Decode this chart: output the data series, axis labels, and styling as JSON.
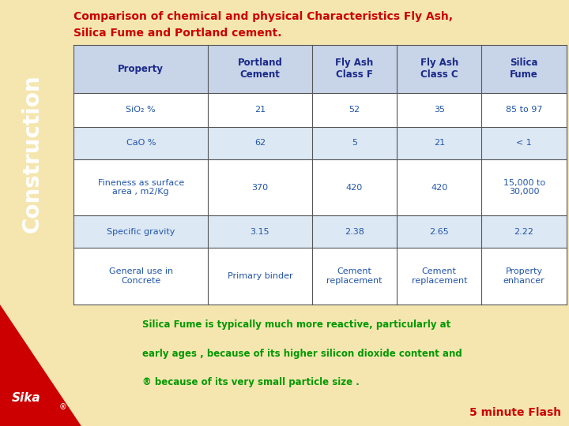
{
  "title_line1": "Comparison of chemical and physical Characteristics Fly Ash,",
  "title_line2": "Silica Fume and Portland cement.",
  "title_color": "#cc0000",
  "sidebar_color": "#f5a800",
  "sidebar_text": "Construction",
  "sidebar_text_color": "#ffffff",
  "bg_color": "#f5e6b0",
  "bottom_bg_color": "#f0dfa0",
  "table_header_bg": "#c8d4e8",
  "table_header_text_color": "#1a2a8a",
  "table_border_color": "#555555",
  "cell_text_color": "#2255aa",
  "col_headers": [
    "Property",
    "Portland\nCement",
    "Fly Ash\nClass F",
    "Fly Ash\nClass C",
    "Silica\nFume"
  ],
  "rows": [
    [
      "SiO₂ %",
      "21",
      "52",
      "35",
      "85 to 97"
    ],
    [
      "CaO %",
      "62",
      "5",
      "21",
      "< 1"
    ],
    [
      "Fineness as surface\narea , m2/Kg",
      "370",
      "420",
      "420",
      "15,000 to\n30,000"
    ],
    [
      "Specific gravity",
      "3.15",
      "2.38",
      "2.65",
      "2.22"
    ],
    [
      "General use in\nConcrete",
      "Primary binder",
      "Cement\nreplacement",
      "Cement\nreplacement",
      "Property\nenhancer"
    ]
  ],
  "row_colors": [
    "#ffffff",
    "#dde8f5",
    "#ffffff",
    "#dde8f5",
    "#ffffff"
  ],
  "footer_text_line1": "Silica Fume is typically much more reactive, particularly at",
  "footer_text_line2": "early ages , because of its higher silicon dioxide content and",
  "footer_text_line3": "® because of its very small particle size .",
  "footer_text_color": "#009900",
  "flash_text": "5 minute Flash",
  "flash_color": "#cc0000"
}
